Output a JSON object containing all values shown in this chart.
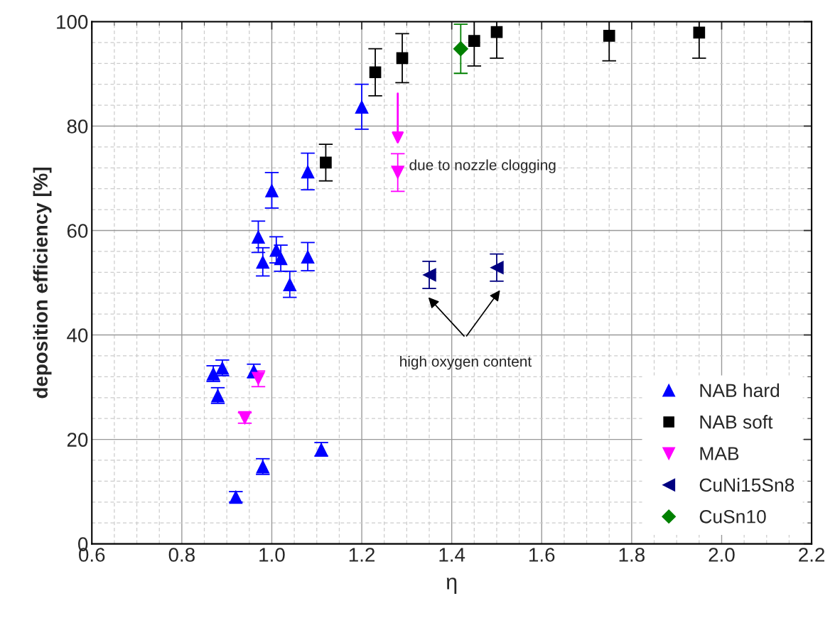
{
  "chart_data": {
    "type": "scatter",
    "xlabel": "η",
    "ylabel": "deposition efficiency [%]",
    "xlim": [
      0.6,
      2.2
    ],
    "xticks": [
      0.6,
      0.8,
      {
        "value": 1,
        "label": "1.0"
      },
      1.2,
      1.4,
      1.6,
      1.8,
      {
        "value": 2,
        "label": "2.0"
      },
      2.2
    ],
    "ylim": [
      0,
      100
    ],
    "yticks": [
      0,
      20,
      40,
      60,
      80,
      100
    ],
    "grid": true,
    "legend": "bottom right",
    "series": [
      {
        "name": "NAB hard",
        "color": "#0000ff",
        "marker": "triangle",
        "x": [
          1.0,
          0.97,
          1.01,
          1.02,
          0.98,
          1.08,
          1.04,
          0.87,
          0.89,
          0.88,
          0.96,
          0.98,
          1.11,
          0.92,
          1.08,
          1.2
        ],
        "values": [
          67.7,
          58.8,
          56.3,
          54.7,
          54,
          55,
          49.7,
          32.6,
          33.7,
          28.4,
          33.1,
          14.8,
          18.1,
          9,
          71.3,
          83.7
        ],
        "errors": [
          3.4,
          3,
          2.5,
          2.5,
          2.7,
          2.7,
          2.5,
          1.5,
          1.5,
          1.5,
          1.3,
          1.5,
          1.3,
          1,
          3.5,
          4.3
        ]
      },
      {
        "name": "NAB soft",
        "color": "#000000",
        "marker": "square",
        "x": [
          1.12,
          1.23,
          1.29,
          1.45,
          1.5,
          1.75,
          1.95
        ],
        "values": [
          73,
          90.3,
          93,
          96.3,
          98,
          97.3,
          97.9
        ],
        "errors": [
          3.5,
          4.5,
          4.7,
          4.8,
          5,
          4.8,
          4.9
        ]
      },
      {
        "name": "MAB",
        "color": "#ff00ff",
        "marker": "triangle-down",
        "x": [
          0.97,
          0.94,
          1.28
        ],
        "values": [
          31.6,
          24.1,
          71.1
        ],
        "errors": [
          1.5,
          1,
          3.6
        ]
      },
      {
        "name": "CuNi15Sn8",
        "color": "#000080",
        "marker": "triangle-left",
        "x": [
          1.35,
          1.5
        ],
        "values": [
          51.5,
          52.9
        ],
        "errors": [
          2.6,
          2.6
        ]
      },
      {
        "name": "CuSn10",
        "color": "#008000",
        "marker": "diamond",
        "x": [
          1.42
        ],
        "values": [
          94.8
        ],
        "errors": [
          4.7
        ]
      }
    ],
    "annotations": [
      {
        "text": "due to nozzle clogging",
        "x": 1.28,
        "y": 71.1
      },
      "high oxygen content"
    ]
  }
}
